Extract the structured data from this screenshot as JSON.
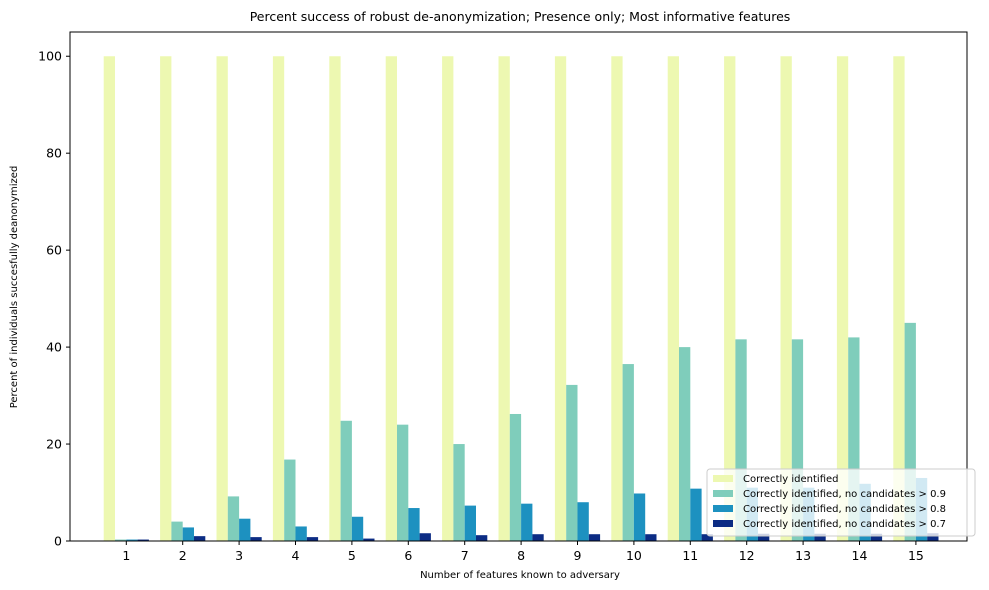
{
  "chart_data": {
    "type": "bar",
    "title": "Percent success of robust de-anonymization; Presence only; Most informative features",
    "xlabel": "Number of features known to adversary",
    "ylabel": "Percent of individuals succesfully deanonymized",
    "categories": [
      "1",
      "2",
      "3",
      "4",
      "5",
      "6",
      "7",
      "8",
      "9",
      "10",
      "11",
      "12",
      "13",
      "14",
      "15"
    ],
    "ylim": [
      0,
      105
    ],
    "yticks": [
      0,
      20,
      40,
      60,
      80,
      100
    ],
    "grid": false,
    "legend_position": "lower-right",
    "series": [
      {
        "name": "Correctly identified",
        "color": "#edf8b1",
        "values": [
          100,
          100,
          100,
          100,
          100,
          100,
          100,
          100,
          100,
          100,
          100,
          100,
          100,
          100,
          100
        ]
      },
      {
        "name": "Correctly identified, no candidates > 0.9",
        "color": "#7fcdbb",
        "values": [
          0.3,
          4.0,
          9.2,
          16.8,
          24.8,
          24.0,
          20.0,
          26.2,
          32.2,
          36.5,
          40.0,
          41.6,
          41.6,
          42.0,
          45.0
        ]
      },
      {
        "name": "Correctly identified, no candidates > 0.8",
        "color": "#1d91c0",
        "values": [
          0.3,
          2.8,
          4.6,
          3.0,
          5.0,
          6.8,
          7.3,
          7.7,
          8.0,
          9.8,
          10.8,
          11.0,
          11.0,
          11.8,
          13.0
        ]
      },
      {
        "name": "Correctly identified, no candidates > 0.7",
        "color": "#0c2c84",
        "values": [
          0.3,
          1.0,
          0.8,
          0.8,
          0.5,
          1.6,
          1.2,
          1.4,
          1.4,
          1.4,
          1.4,
          1.5,
          1.5,
          1.5,
          1.6
        ]
      }
    ]
  }
}
